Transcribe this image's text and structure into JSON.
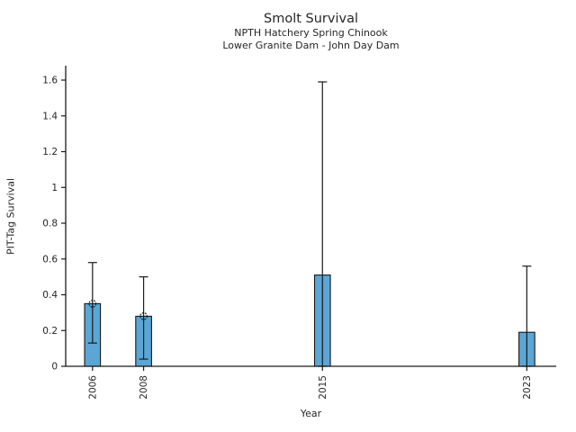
{
  "chart_data": {
    "type": "bar",
    "title": "Smolt Survival",
    "subtitles": [
      "NPTH Hatchery Spring Chinook",
      "Lower Granite Dam - John Day Dam"
    ],
    "xlabel": "Year",
    "ylabel": "PIT-Tag Survival",
    "categories": [
      "2006",
      "2008",
      "2015",
      "2023"
    ],
    "x_years": [
      2006,
      2008,
      2015,
      2023
    ],
    "values": [
      0.35,
      0.28,
      0.51,
      0.19
    ],
    "error_low": [
      0.13,
      0.04,
      0.0,
      0.0
    ],
    "error_high": [
      0.58,
      0.5,
      1.59,
      0.56
    ],
    "markers_on_bar_top": [
      true,
      true,
      false,
      false
    ],
    "yticks": [
      "0",
      "0.2",
      "0.4",
      "0.6",
      "0.8",
      "1",
      "1.2",
      "1.4",
      "1.6"
    ],
    "ylim": [
      0,
      1.68
    ],
    "xlim_years": [
      2004.95,
      2024.15
    ],
    "bar_width_years": 0.62,
    "grid": false,
    "legend": null,
    "colors": {
      "bar_fill": "#5aa6d4",
      "bar_edge": "#1a1a1a",
      "error": "#1a1a1a",
      "axis": "#1a1a1a",
      "text": "#262626",
      "background": "#ffffff"
    }
  }
}
